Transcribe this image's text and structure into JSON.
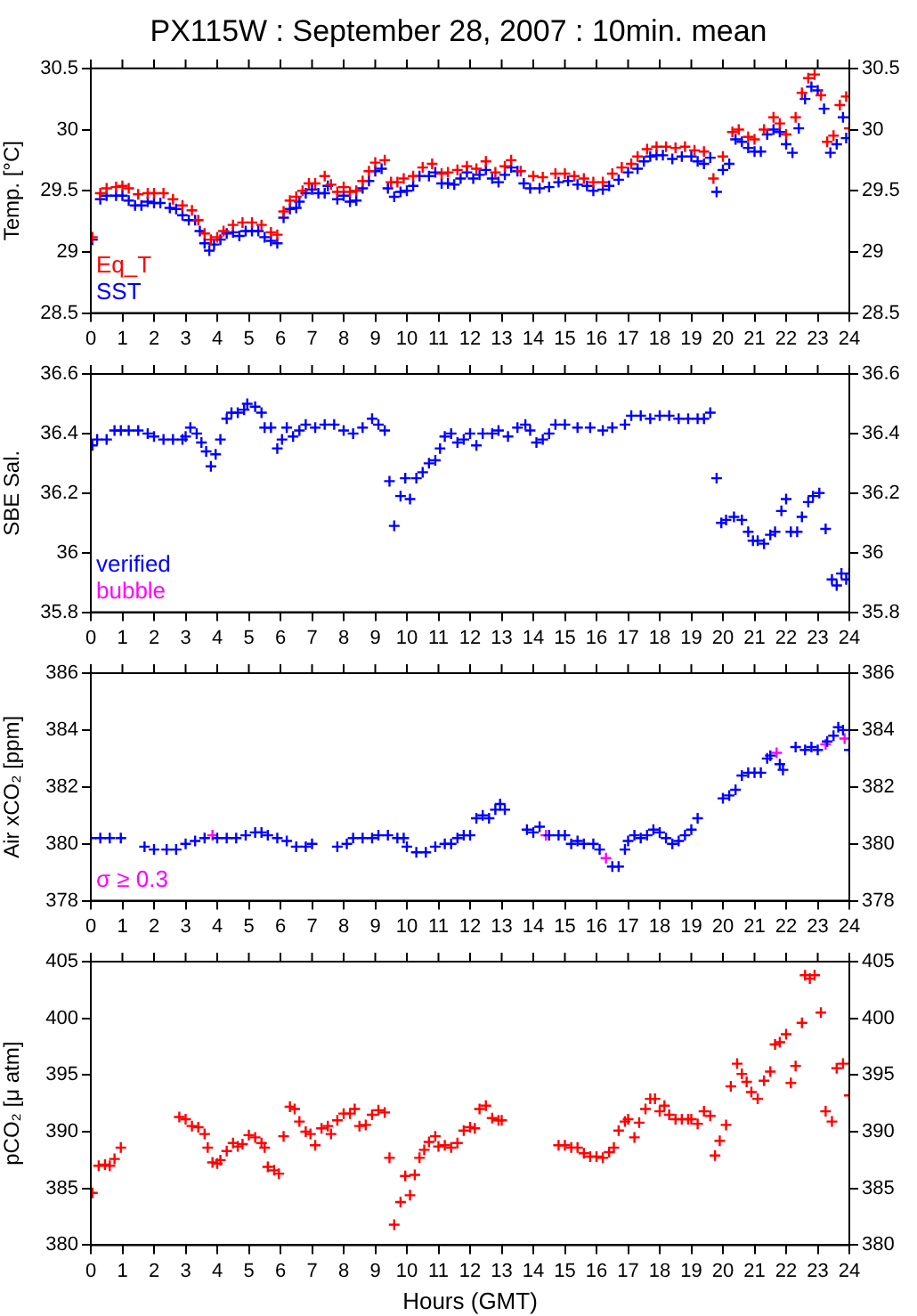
{
  "chart_data": [
    {
      "type": "scatter",
      "title": "PX115W : September 28, 2007 : 10min. mean",
      "ylabel": "Temp. [°C]",
      "marker": "cross",
      "legend": "bottom left",
      "grid": false,
      "xlim": [
        0,
        24
      ],
      "xticks": [
        0,
        1,
        2,
        3,
        4,
        5,
        6,
        7,
        8,
        9,
        10,
        11,
        12,
        13,
        14,
        15,
        16,
        17,
        18,
        19,
        20,
        21,
        22,
        23,
        24
      ],
      "ylim": [
        28.5,
        30.5
      ],
      "yticks": [
        28.5,
        29,
        29.5,
        30,
        30.5
      ],
      "y2lim": [
        28.5,
        30.5
      ],
      "y2ticks": [
        28.5,
        29,
        29.5,
        30,
        30.5
      ],
      "series": [
        {
          "name": "Eq_T",
          "color": "#ff0000",
          "x": [
            0.05,
            0.3,
            0.5,
            0.8,
            1.0,
            1.2,
            1.5,
            1.8,
            2.0,
            2.3,
            2.6,
            2.9,
            3.2,
            3.4,
            3.6,
            3.8,
            4.0,
            4.2,
            4.5,
            4.8,
            5.1,
            5.4,
            5.7,
            5.9,
            6.1,
            6.3,
            6.5,
            6.7,
            6.9,
            7.1,
            7.4,
            7.6,
            7.8,
            8.0,
            8.2,
            8.4,
            8.6,
            8.8,
            9.0,
            9.3,
            9.5,
            9.7,
            9.9,
            10.2,
            10.5,
            10.8,
            11.1,
            11.3,
            11.6,
            11.9,
            12.2,
            12.5,
            12.8,
            13.1,
            13.3,
            13.6,
            14.0,
            14.3,
            14.7,
            15.0,
            15.3,
            15.6,
            15.9,
            16.2,
            16.5,
            16.8,
            17.1,
            17.3,
            17.6,
            17.9,
            18.2,
            18.5,
            18.8,
            19.1,
            19.4,
            19.7,
            20.0,
            20.3,
            20.5,
            20.8,
            21.0,
            21.3,
            21.6,
            21.8,
            22.0,
            22.3,
            22.5,
            22.7,
            22.9,
            23.1,
            23.3,
            23.5,
            23.7,
            23.9,
            24.0
          ],
          "values": [
            29.12,
            29.48,
            29.52,
            29.53,
            29.54,
            29.52,
            29.47,
            29.48,
            29.48,
            29.48,
            29.43,
            29.38,
            29.34,
            29.26,
            29.15,
            29.1,
            29.12,
            29.17,
            29.22,
            29.24,
            29.24,
            29.22,
            29.16,
            29.14,
            29.33,
            29.42,
            29.45,
            29.5,
            29.56,
            29.56,
            29.62,
            29.55,
            29.49,
            29.53,
            29.49,
            29.5,
            29.58,
            29.66,
            29.73,
            29.75,
            29.57,
            29.57,
            29.6,
            29.62,
            29.69,
            29.72,
            29.64,
            29.65,
            29.67,
            29.7,
            29.68,
            29.74,
            29.65,
            29.7,
            29.75,
            29.66,
            29.62,
            29.61,
            29.64,
            29.64,
            29.62,
            29.6,
            29.57,
            29.57,
            29.64,
            29.69,
            29.72,
            29.78,
            29.84,
            29.86,
            29.86,
            29.85,
            29.86,
            29.83,
            29.82,
            29.6,
            29.78,
            29.98,
            30.0,
            29.94,
            29.92,
            30.0,
            30.1,
            30.05,
            29.96,
            30.1,
            30.3,
            30.42,
            30.45,
            30.28,
            29.9,
            29.95,
            30.2,
            30.27,
            30.01
          ]
        },
        {
          "name": "SST",
          "color": "#0000ff",
          "x": [
            0.05,
            0.3,
            0.5,
            0.8,
            1.0,
            1.2,
            1.4,
            1.6,
            1.8,
            2.0,
            2.2,
            2.5,
            2.7,
            2.9,
            3.1,
            3.3,
            3.45,
            3.6,
            3.75,
            3.9,
            4.1,
            4.3,
            4.5,
            4.7,
            4.9,
            5.1,
            5.3,
            5.5,
            5.7,
            5.9,
            6.1,
            6.3,
            6.5,
            6.6,
            6.8,
            7.0,
            7.2,
            7.4,
            7.5,
            7.8,
            8.0,
            8.2,
            8.4,
            8.6,
            8.8,
            9.0,
            9.2,
            9.4,
            9.6,
            9.8,
            10.0,
            10.2,
            10.4,
            10.7,
            10.9,
            11.1,
            11.3,
            11.5,
            11.7,
            11.9,
            12.1,
            12.3,
            12.5,
            12.7,
            12.9,
            13.1,
            13.3,
            13.5,
            13.7,
            13.9,
            14.2,
            14.5,
            14.8,
            15.1,
            15.4,
            15.7,
            15.9,
            16.2,
            16.4,
            16.7,
            17.0,
            17.3,
            17.5,
            17.7,
            17.9,
            18.1,
            18.4,
            18.7,
            19.0,
            19.2,
            19.4,
            19.6,
            19.8,
            20.0,
            20.2,
            20.4,
            20.6,
            20.8,
            21.0,
            21.2,
            21.4,
            21.6,
            21.8,
            22.0,
            22.2,
            22.4,
            22.6,
            22.8,
            23.0,
            23.2,
            23.4,
            23.6,
            23.8,
            23.9
          ],
          "values": [
            29.1,
            29.43,
            29.46,
            29.46,
            29.46,
            29.42,
            29.38,
            29.38,
            29.41,
            29.4,
            29.4,
            29.36,
            29.35,
            29.3,
            29.26,
            29.26,
            29.17,
            29.07,
            29.01,
            29.06,
            29.1,
            29.15,
            29.16,
            29.13,
            29.17,
            29.17,
            29.17,
            29.12,
            29.09,
            29.07,
            29.28,
            29.35,
            29.36,
            29.41,
            29.48,
            29.51,
            29.48,
            29.48,
            29.54,
            29.43,
            29.46,
            29.41,
            29.42,
            29.52,
            29.58,
            29.66,
            29.68,
            29.52,
            29.45,
            29.49,
            29.5,
            29.54,
            29.62,
            29.62,
            29.65,
            29.56,
            29.56,
            29.55,
            29.6,
            29.65,
            29.6,
            29.63,
            29.67,
            29.6,
            29.57,
            29.63,
            29.69,
            29.66,
            29.56,
            29.52,
            29.52,
            29.53,
            29.57,
            29.58,
            29.55,
            29.54,
            29.5,
            29.51,
            29.54,
            29.59,
            29.65,
            29.68,
            29.74,
            29.78,
            29.79,
            29.79,
            29.76,
            29.78,
            29.78,
            29.74,
            29.72,
            29.77,
            29.49,
            29.67,
            29.72,
            29.92,
            29.9,
            29.85,
            29.82,
            29.82,
            29.96,
            30.0,
            29.98,
            29.88,
            29.81,
            30.01,
            30.25,
            30.35,
            30.32,
            30.17,
            29.81,
            29.88,
            30.1,
            29.93
          ]
        }
      ]
    },
    {
      "type": "scatter",
      "ylabel": "SBE Sal.",
      "marker": "cross",
      "legend": "bottom left",
      "grid": false,
      "xlim": [
        0,
        24
      ],
      "xticks": [
        0,
        1,
        2,
        3,
        4,
        5,
        6,
        7,
        8,
        9,
        10,
        11,
        12,
        13,
        14,
        15,
        16,
        17,
        18,
        19,
        20,
        21,
        22,
        23,
        24
      ],
      "ylim": [
        35.8,
        36.6
      ],
      "yticks": [
        35.8,
        36,
        36.2,
        36.4,
        36.6
      ],
      "y2lim": [
        35.8,
        36.6
      ],
      "y2ticks": [
        35.8,
        36,
        36.2,
        36.4,
        36.6
      ],
      "series": [
        {
          "name": "verified",
          "color": "#0000ff",
          "x": [
            0.05,
            0.2,
            0.5,
            0.75,
            0.95,
            1.2,
            1.5,
            1.8,
            2.0,
            2.3,
            2.6,
            2.9,
            3.0,
            3.15,
            3.35,
            3.5,
            3.65,
            3.8,
            3.95,
            4.1,
            4.3,
            4.45,
            4.65,
            4.85,
            4.95,
            5.2,
            5.4,
            5.5,
            5.7,
            5.9,
            6.05,
            6.2,
            6.4,
            6.6,
            6.8,
            7.1,
            7.4,
            7.7,
            8.0,
            8.3,
            8.6,
            8.9,
            9.1,
            9.3,
            9.45,
            9.6,
            9.8,
            9.95,
            10.1,
            10.3,
            10.5,
            10.7,
            10.9,
            11.05,
            11.2,
            11.4,
            11.6,
            11.8,
            12.0,
            12.2,
            12.4,
            12.7,
            12.9,
            13.2,
            13.5,
            13.75,
            13.9,
            14.1,
            14.3,
            14.5,
            14.7,
            15.0,
            15.4,
            15.8,
            16.2,
            16.5,
            16.9,
            17.1,
            17.4,
            17.7,
            18.0,
            18.3,
            18.6,
            18.9,
            19.2,
            19.4,
            19.6,
            19.8,
            19.95,
            20.1,
            20.35,
            20.6,
            20.8,
            20.95,
            21.1,
            21.3,
            21.5,
            21.65,
            21.85,
            22.0,
            22.15,
            22.35,
            22.5,
            22.7,
            22.85,
            23.05,
            23.25,
            23.45,
            23.6,
            23.75,
            23.9,
            24.0
          ],
          "values": [
            36.36,
            36.38,
            36.38,
            36.41,
            36.41,
            36.41,
            36.41,
            36.4,
            36.39,
            36.38,
            36.38,
            36.38,
            36.39,
            36.42,
            36.4,
            36.37,
            36.34,
            36.29,
            36.33,
            36.38,
            36.45,
            36.47,
            36.47,
            36.48,
            36.5,
            36.49,
            36.47,
            36.42,
            36.42,
            36.35,
            36.38,
            36.42,
            36.39,
            36.41,
            36.43,
            36.42,
            36.43,
            36.43,
            36.41,
            36.4,
            36.42,
            36.45,
            36.43,
            36.41,
            36.24,
            36.09,
            36.19,
            36.25,
            36.18,
            36.25,
            36.27,
            36.3,
            36.31,
            36.35,
            36.39,
            36.4,
            36.37,
            36.38,
            36.4,
            36.36,
            36.4,
            36.4,
            36.41,
            36.39,
            36.42,
            36.43,
            36.41,
            36.37,
            36.38,
            36.4,
            36.43,
            36.43,
            36.42,
            36.42,
            36.41,
            36.42,
            36.43,
            36.46,
            36.46,
            36.45,
            36.46,
            36.46,
            36.45,
            36.45,
            36.45,
            36.45,
            36.47,
            36.25,
            36.1,
            36.11,
            36.12,
            36.11,
            36.07,
            36.04,
            36.04,
            36.03,
            36.06,
            36.07,
            36.14,
            36.18,
            36.07,
            36.07,
            36.12,
            36.17,
            36.19,
            36.2,
            36.08,
            35.91,
            35.89,
            35.93,
            35.91,
            35.93
          ]
        },
        {
          "name": "bubble",
          "color": "#ff00ff"
        }
      ]
    },
    {
      "type": "scatter",
      "ylabel": "Air xCO₂ [ppm]",
      "marker": "cross",
      "legend": "bottom left",
      "grid": false,
      "xlim": [
        0,
        24
      ],
      "xticks": [
        0,
        1,
        2,
        3,
        4,
        5,
        6,
        7,
        8,
        9,
        10,
        11,
        12,
        13,
        14,
        15,
        16,
        17,
        18,
        19,
        20,
        21,
        22,
        23,
        24
      ],
      "ylim": [
        378,
        386
      ],
      "yticks": [
        378,
        380,
        382,
        384,
        386
      ],
      "y2lim": [
        378,
        386
      ],
      "y2ticks": [
        378,
        380,
        382,
        384,
        386
      ],
      "series": [
        {
          "color": "#0000ff",
          "x": [
            0.0,
            0.3,
            0.6,
            0.95,
            1.7,
            2.0,
            2.4,
            2.7,
            3.0,
            3.3,
            3.6,
            4.0,
            4.3,
            4.6,
            4.9,
            5.2,
            5.4,
            5.6,
            5.9,
            6.2,
            6.5,
            6.8,
            7.0,
            7.8,
            8.1,
            8.3,
            8.6,
            8.9,
            9.1,
            9.4,
            9.7,
            9.9,
            10.0,
            10.3,
            10.6,
            10.9,
            11.2,
            11.4,
            11.6,
            11.8,
            12.0,
            12.2,
            12.4,
            12.6,
            12.8,
            12.95,
            13.1,
            13.8,
            14.0,
            14.2,
            14.5,
            14.8,
            15.0,
            15.2,
            15.4,
            15.6,
            15.9,
            16.1,
            16.5,
            16.7,
            16.9,
            17.0,
            17.2,
            17.4,
            17.6,
            17.8,
            18.0,
            18.2,
            18.4,
            18.6,
            18.8,
            19.0,
            19.2,
            20.0,
            20.2,
            20.4,
            20.6,
            20.8,
            21.0,
            21.2,
            21.4,
            21.5,
            21.8,
            21.9,
            22.3,
            22.6,
            22.8,
            23.0,
            23.3,
            23.5,
            23.65,
            23.8,
            24.0
          ],
          "values": [
            380.2,
            380.2,
            380.2,
            380.2,
            379.9,
            379.8,
            379.8,
            379.8,
            380.0,
            380.1,
            380.2,
            380.2,
            380.2,
            380.2,
            380.3,
            380.4,
            380.4,
            380.3,
            380.2,
            380.1,
            379.9,
            379.9,
            380.0,
            379.9,
            380.0,
            380.2,
            380.2,
            380.2,
            380.3,
            380.3,
            380.2,
            380.2,
            379.9,
            379.7,
            379.7,
            379.9,
            380.0,
            380.0,
            380.2,
            380.3,
            380.3,
            380.9,
            381.0,
            380.9,
            381.2,
            381.4,
            381.2,
            380.5,
            380.4,
            380.6,
            380.3,
            380.3,
            380.3,
            380.0,
            380.1,
            380.0,
            380.0,
            379.8,
            379.2,
            379.2,
            379.8,
            380.1,
            380.3,
            380.2,
            380.3,
            380.5,
            380.4,
            380.2,
            380.0,
            380.1,
            380.3,
            380.5,
            380.9,
            381.6,
            381.7,
            381.9,
            382.4,
            382.5,
            382.5,
            382.5,
            383.0,
            383.1,
            382.8,
            382.6,
            383.4,
            383.3,
            383.4,
            383.3,
            383.6,
            383.8,
            384.1,
            384.0,
            383.3
          ]
        },
        {
          "name": "σ ≥ 0.3",
          "color": "#ff00ff",
          "x": [
            3.85,
            14.4,
            16.3,
            21.7,
            23.25,
            23.85
          ],
          "values": [
            380.3,
            380.3,
            379.5,
            383.2,
            383.5,
            383.7
          ]
        }
      ]
    },
    {
      "type": "scatter",
      "ylabel": "pCO₂ [μ atm]",
      "xlabel": "Hours (GMT)",
      "marker": "cross",
      "grid": false,
      "xlim": [
        0,
        24
      ],
      "xticks": [
        0,
        1,
        2,
        3,
        4,
        5,
        6,
        7,
        8,
        9,
        10,
        11,
        12,
        13,
        14,
        15,
        16,
        17,
        18,
        19,
        20,
        21,
        22,
        23,
        24
      ],
      "ylim": [
        380,
        405
      ],
      "yticks": [
        380,
        385,
        390,
        395,
        400,
        405
      ],
      "y2lim": [
        380,
        405
      ],
      "y2ticks": [
        380,
        385,
        390,
        395,
        400,
        405
      ],
      "series": [
        {
          "color": "#ff0000",
          "x": [
            0.05,
            0.25,
            0.45,
            0.6,
            0.75,
            0.95,
            2.8,
            3.0,
            3.2,
            3.4,
            3.6,
            3.7,
            3.85,
            4.0,
            4.1,
            4.3,
            4.5,
            4.65,
            4.8,
            5.0,
            5.2,
            5.4,
            5.5,
            5.6,
            5.8,
            5.95,
            6.1,
            6.3,
            6.45,
            6.6,
            6.8,
            6.95,
            7.1,
            7.3,
            7.5,
            7.6,
            7.8,
            8.0,
            8.2,
            8.35,
            8.5,
            8.7,
            8.9,
            9.1,
            9.3,
            9.45,
            9.6,
            9.8,
            9.95,
            10.1,
            10.25,
            10.4,
            10.55,
            10.7,
            10.9,
            11.0,
            11.2,
            11.4,
            11.6,
            11.8,
            12.0,
            12.15,
            12.3,
            12.5,
            12.7,
            12.9,
            13.0,
            14.8,
            15.0,
            15.2,
            15.4,
            15.6,
            15.8,
            16.0,
            16.2,
            16.4,
            16.55,
            16.7,
            16.9,
            17.0,
            17.2,
            17.35,
            17.55,
            17.7,
            17.85,
            18.0,
            18.15,
            18.3,
            18.5,
            18.7,
            18.9,
            19.0,
            19.2,
            19.4,
            19.6,
            19.75,
            19.9,
            20.1,
            20.25,
            20.45,
            20.6,
            20.75,
            20.9,
            21.1,
            21.3,
            21.5,
            21.65,
            21.8,
            22.0,
            22.15,
            22.3,
            22.5,
            22.6,
            22.75,
            22.9,
            23.1,
            23.25,
            23.45,
            23.6,
            23.8,
            24.0
          ],
          "values": [
            384.6,
            387.0,
            387.1,
            387.0,
            387.6,
            388.6,
            391.3,
            391.1,
            390.5,
            390.4,
            389.8,
            388.6,
            387.3,
            387.2,
            387.5,
            388.3,
            389.0,
            388.7,
            388.9,
            389.7,
            389.5,
            389.0,
            388.6,
            386.9,
            386.6,
            386.3,
            389.6,
            392.2,
            392.0,
            390.9,
            390.0,
            389.8,
            388.8,
            390.3,
            390.5,
            389.8,
            391.0,
            391.6,
            391.6,
            392.0,
            390.5,
            390.6,
            391.5,
            391.9,
            391.7,
            387.7,
            381.8,
            383.8,
            386.1,
            384.4,
            386.2,
            387.7,
            388.4,
            389.1,
            389.6,
            388.7,
            388.8,
            388.6,
            389.0,
            390.1,
            390.4,
            390.3,
            392.0,
            392.3,
            391.2,
            391.0,
            391.0,
            388.8,
            388.8,
            388.6,
            388.6,
            388.1,
            387.8,
            387.8,
            387.7,
            388.2,
            388.6,
            390.1,
            390.9,
            391.1,
            389.5,
            390.8,
            392.0,
            392.9,
            392.9,
            391.8,
            392.3,
            391.5,
            391.1,
            391.1,
            391.1,
            391.1,
            390.7,
            391.8,
            391.4,
            387.9,
            389.2,
            390.6,
            394.0,
            396.0,
            395.1,
            394.4,
            393.5,
            392.9,
            394.5,
            395.3,
            397.7,
            397.9,
            398.6,
            394.3,
            395.8,
            399.6,
            403.8,
            403.5,
            403.8,
            400.5,
            391.8,
            390.9,
            395.6,
            396.0,
            393.2
          ]
        }
      ]
    }
  ]
}
